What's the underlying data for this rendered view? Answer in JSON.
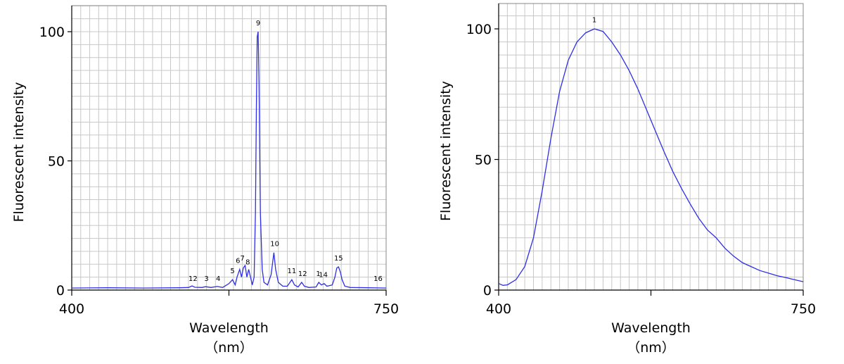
{
  "chart_data": [
    {
      "type": "line",
      "xlabel": "Wavelength",
      "xunit": "（nm）",
      "ylabel": "Fluorescent intensity",
      "xlim": [
        400,
        750
      ],
      "ylim": [
        0,
        110
      ],
      "x_ticks": [
        400,
        750
      ],
      "y_ticks": [
        0,
        50,
        100
      ],
      "grid": true,
      "series": [
        {
          "color": "#2e2ee6",
          "points": [
            [
              400,
              0.8
            ],
            [
              440,
              0.9
            ],
            [
              480,
              0.8
            ],
            [
              520,
              0.9
            ],
            [
              530,
              1.0
            ],
            [
              534,
              1.6
            ],
            [
              537,
              1.1
            ],
            [
              545,
              1.0
            ],
            [
              549,
              1.3
            ],
            [
              555,
              1.0
            ],
            [
              562,
              1.4
            ],
            [
              568,
              1.0
            ],
            [
              575,
              2.5
            ],
            [
              579,
              4.0
            ],
            [
              582,
              2.0
            ],
            [
              584,
              5.0
            ],
            [
              587,
              8.0
            ],
            [
              589,
              5.0
            ],
            [
              591,
              8.5
            ],
            [
              593,
              9.5
            ],
            [
              595,
              5.0
            ],
            [
              597,
              8.0
            ],
            [
              599,
              5.0
            ],
            [
              601,
              2.0
            ],
            [
              603,
              5.0
            ],
            [
              604.5,
              30.0
            ],
            [
              605.5,
              70.0
            ],
            [
              606.5,
              98.0
            ],
            [
              607.5,
              100.0
            ],
            [
              608.5,
              80.0
            ],
            [
              610,
              30.0
            ],
            [
              612,
              8.0
            ],
            [
              614,
              3.0
            ],
            [
              618,
              2.0
            ],
            [
              622,
              6.0
            ],
            [
              625,
              14.5
            ],
            [
              627,
              8.0
            ],
            [
              630,
              3.0
            ],
            [
              635,
              1.5
            ],
            [
              640,
              1.5
            ],
            [
              645,
              4.0
            ],
            [
              648,
              2.0
            ],
            [
              652,
              1.2
            ],
            [
              656,
              3.0
            ],
            [
              659,
              1.5
            ],
            [
              664,
              1.0
            ],
            [
              672,
              1.2
            ],
            [
              675,
              3.0
            ],
            [
              678,
              2.0
            ],
            [
              681,
              2.5
            ],
            [
              684,
              1.5
            ],
            [
              690,
              2.0
            ],
            [
              693,
              5.0
            ],
            [
              695,
              8.5
            ],
            [
              697,
              9.0
            ],
            [
              699,
              7.0
            ],
            [
              701,
              4.0
            ],
            [
              704,
              1.5
            ],
            [
              710,
              1.0
            ],
            [
              730,
              0.9
            ],
            [
              750,
              0.8
            ]
          ]
        }
      ],
      "peak_labels": [
        {
          "text": "12",
          "x": 535,
          "y": 3.5
        },
        {
          "text": "3",
          "x": 550,
          "y": 3.5
        },
        {
          "text": "4",
          "x": 563,
          "y": 3.5
        },
        {
          "text": "5",
          "x": 579,
          "y": 6.5
        },
        {
          "text": "6",
          "x": 585,
          "y": 10.5
        },
        {
          "text": "7",
          "x": 590,
          "y": 11.5
        },
        {
          "text": "8",
          "x": 596,
          "y": 10.0
        },
        {
          "text": "9",
          "x": 607.5,
          "y": 102.5
        },
        {
          "text": "10",
          "x": 626,
          "y": 17.0
        },
        {
          "text": "11",
          "x": 645,
          "y": 6.5
        },
        {
          "text": "12",
          "x": 657,
          "y": 5.5
        },
        {
          "text": "1",
          "x": 674.5,
          "y": 5.5
        },
        {
          "text": "14",
          "x": 680,
          "y": 5.0
        },
        {
          "text": "15",
          "x": 697,
          "y": 11.5
        },
        {
          "text": "16",
          "x": 741,
          "y": 3.5
        }
      ]
    },
    {
      "type": "line",
      "xlabel": "Wavelength",
      "xunit": "（nm）",
      "ylabel": "Fluorescent intensity",
      "xlim": [
        400,
        750
      ],
      "ylim": [
        0,
        110
      ],
      "x_ticks": [
        400,
        750
      ],
      "y_ticks": [
        0,
        50,
        100
      ],
      "grid": true,
      "series": [
        {
          "color": "#2e2ee6",
          "points": [
            [
              400,
              2.5
            ],
            [
              405,
              1.8
            ],
            [
              410,
              2.0
            ],
            [
              420,
              4.0
            ],
            [
              430,
              9.0
            ],
            [
              440,
              20.0
            ],
            [
              450,
              38.0
            ],
            [
              460,
              58.0
            ],
            [
              470,
              76.0
            ],
            [
              480,
              88.0
            ],
            [
              490,
              95.0
            ],
            [
              500,
              98.5
            ],
            [
              510,
              100.0
            ],
            [
              520,
              99.0
            ],
            [
              530,
              95.0
            ],
            [
              540,
              90.0
            ],
            [
              550,
              84.0
            ],
            [
              560,
              77.0
            ],
            [
              570,
              69.0
            ],
            [
              580,
              61.0
            ],
            [
              590,
              53.0
            ],
            [
              600,
              45.5
            ],
            [
              610,
              39.0
            ],
            [
              620,
              33.0
            ],
            [
              630,
              27.5
            ],
            [
              640,
              23.0
            ],
            [
              650,
              20.0
            ],
            [
              660,
              16.0
            ],
            [
              670,
              13.0
            ],
            [
              680,
              10.5
            ],
            [
              690,
              9.0
            ],
            [
              700,
              7.5
            ],
            [
              710,
              6.5
            ],
            [
              720,
              5.5
            ],
            [
              730,
              4.8
            ],
            [
              740,
              4.0
            ],
            [
              750,
              3.2
            ]
          ]
        }
      ],
      "peak_labels": [
        {
          "text": "1",
          "x": 510,
          "y": 102.5
        }
      ]
    }
  ]
}
